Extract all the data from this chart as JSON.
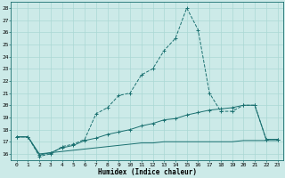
{
  "xlabel": "Humidex (Indice chaleur)",
  "bg_color": "#cceae8",
  "line_color": "#1a7070",
  "grid_color": "#aad8d4",
  "ylim": [
    15.5,
    28.5
  ],
  "xlim": [
    -0.5,
    23.5
  ],
  "yticks": [
    16,
    17,
    18,
    19,
    20,
    21,
    22,
    23,
    24,
    25,
    26,
    27,
    28
  ],
  "xticks": [
    0,
    1,
    2,
    3,
    4,
    5,
    6,
    7,
    8,
    9,
    10,
    11,
    12,
    13,
    14,
    15,
    16,
    17,
    18,
    19,
    20,
    21,
    22,
    23
  ],
  "xtick_labels": [
    "0",
    "1",
    "2",
    "3",
    "4",
    "5",
    "6",
    "7",
    "8",
    "9",
    "10",
    "11",
    "12",
    "13",
    "14",
    "15",
    "16",
    "17",
    "18",
    "19",
    "20",
    "21",
    "22",
    "23"
  ],
  "line1_x": [
    0,
    1,
    2,
    3,
    4,
    5,
    6,
    7,
    8,
    9,
    10,
    11,
    12,
    13,
    14,
    15,
    16,
    17,
    18,
    19,
    20,
    21,
    22,
    23
  ],
  "line1_y": [
    17.4,
    17.4,
    15.8,
    16.0,
    16.6,
    16.8,
    17.2,
    19.3,
    19.8,
    20.8,
    21.0,
    22.5,
    23.0,
    24.5,
    25.5,
    28.0,
    26.2,
    21.0,
    19.5,
    19.5,
    20.0,
    20.0,
    17.2,
    17.2
  ],
  "line2_x": [
    0,
    1,
    2,
    3,
    4,
    5,
    6,
    7,
    8,
    9,
    10,
    11,
    12,
    13,
    14,
    15,
    16,
    17,
    18,
    19,
    20,
    21,
    22,
    23
  ],
  "line2_y": [
    17.4,
    17.4,
    15.9,
    16.1,
    16.5,
    16.7,
    17.1,
    17.3,
    17.6,
    17.8,
    18.0,
    18.3,
    18.5,
    18.8,
    18.9,
    19.2,
    19.4,
    19.6,
    19.7,
    19.8,
    20.0,
    20.0,
    17.2,
    17.2
  ],
  "line3_x": [
    0,
    1,
    2,
    3,
    4,
    5,
    6,
    7,
    8,
    9,
    10,
    11,
    12,
    13,
    14,
    15,
    16,
    17,
    18,
    19,
    20,
    21,
    22,
    23
  ],
  "line3_y": [
    17.4,
    17.4,
    16.0,
    16.1,
    16.2,
    16.3,
    16.4,
    16.5,
    16.6,
    16.7,
    16.8,
    16.9,
    16.9,
    17.0,
    17.0,
    17.0,
    17.0,
    17.0,
    17.0,
    17.0,
    17.1,
    17.1,
    17.1,
    17.1
  ]
}
